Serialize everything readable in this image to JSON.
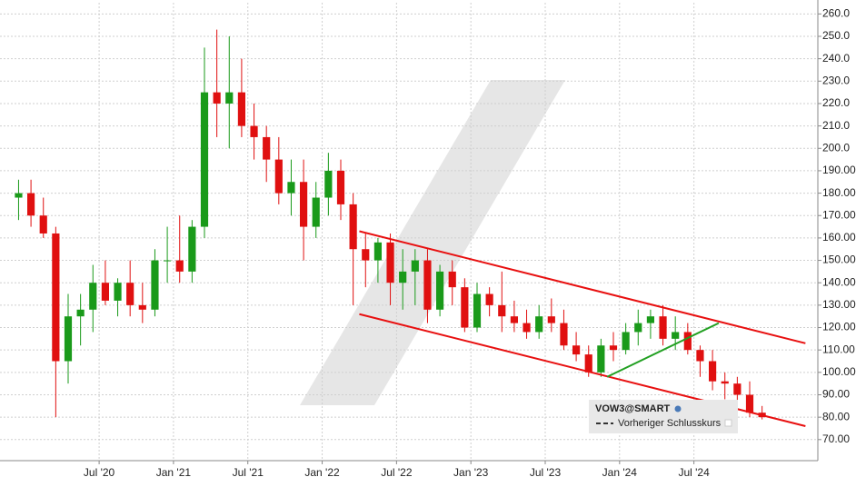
{
  "chart_data": {
    "type": "candlestick",
    "x": [
      "2019-12",
      "2020-01",
      "2020-02",
      "2020-03",
      "2020-04",
      "2020-05",
      "2020-06",
      "2020-07",
      "2020-08",
      "2020-09",
      "2020-10",
      "2020-11",
      "2020-12",
      "2021-01",
      "2021-02",
      "2021-03",
      "2021-04",
      "2021-05",
      "2021-06",
      "2021-07",
      "2021-08",
      "2021-09",
      "2021-10",
      "2021-11",
      "2021-12",
      "2022-01",
      "2022-02",
      "2022-03",
      "2022-04",
      "2022-05",
      "2022-06",
      "2022-07",
      "2022-08",
      "2022-09",
      "2022-10",
      "2022-11",
      "2022-12",
      "2023-01",
      "2023-02",
      "2023-03",
      "2023-04",
      "2023-05",
      "2023-06",
      "2023-07",
      "2023-08",
      "2023-09",
      "2023-10",
      "2023-11",
      "2023-12",
      "2024-01",
      "2024-02",
      "2024-03",
      "2024-04",
      "2024-05",
      "2024-06",
      "2024-07",
      "2024-08",
      "2024-09",
      "2024-10",
      "2024-11",
      "2024-12"
    ],
    "open": [
      178,
      180,
      170,
      162,
      105,
      125,
      128,
      140,
      132,
      140,
      130,
      128,
      150,
      150,
      145,
      165,
      225,
      220,
      225,
      210,
      205,
      195,
      180,
      185,
      165,
      178,
      190,
      175,
      155,
      150,
      158,
      140,
      145,
      150,
      128,
      145,
      138,
      120,
      135,
      130,
      125,
      122,
      118,
      125,
      122,
      112,
      108,
      100,
      112,
      110,
      118,
      122,
      125,
      115,
      118,
      110,
      105,
      96,
      95,
      90,
      82
    ],
    "high": [
      186,
      186,
      178,
      165,
      135,
      135,
      148,
      150,
      142,
      150,
      140,
      155,
      165,
      170,
      168,
      245,
      253,
      250,
      240,
      220,
      210,
      205,
      195,
      195,
      185,
      198,
      195,
      180,
      162,
      160,
      162,
      155,
      155,
      155,
      148,
      150,
      142,
      140,
      138,
      145,
      132,
      128,
      130,
      133,
      128,
      118,
      112,
      115,
      118,
      122,
      128,
      128,
      130,
      125,
      122,
      112,
      110,
      100,
      98,
      96,
      85
    ],
    "low": [
      168,
      165,
      160,
      80,
      95,
      112,
      118,
      130,
      125,
      125,
      122,
      125,
      140,
      140,
      140,
      160,
      205,
      200,
      205,
      195,
      185,
      175,
      170,
      150,
      160,
      170,
      168,
      130,
      138,
      140,
      130,
      128,
      130,
      122,
      125,
      130,
      118,
      118,
      125,
      118,
      118,
      115,
      115,
      118,
      110,
      105,
      98,
      98,
      105,
      108,
      112,
      115,
      112,
      110,
      108,
      98,
      92,
      88,
      87,
      80,
      79
    ],
    "close": [
      180,
      170,
      162,
      105,
      125,
      128,
      140,
      132,
      140,
      130,
      128,
      150,
      150,
      145,
      165,
      225,
      220,
      225,
      210,
      205,
      195,
      180,
      185,
      165,
      178,
      190,
      175,
      155,
      150,
      158,
      140,
      145,
      150,
      128,
      145,
      138,
      120,
      135,
      130,
      125,
      122,
      118,
      125,
      122,
      112,
      108,
      100,
      112,
      110,
      118,
      122,
      125,
      115,
      118,
      110,
      105,
      96,
      95,
      90,
      82,
      80
    ],
    "up_color": "#1a9a1a",
    "down_color": "#e01010",
    "xlim": [
      "2019-11",
      "2025-05"
    ],
    "xticks": [
      {
        "value": "2020-07",
        "label": "Jul '20"
      },
      {
        "value": "2021-01",
        "label": "Jan '21"
      },
      {
        "value": "2021-07",
        "label": "Jul '21"
      },
      {
        "value": "2022-01",
        "label": "Jan '22"
      },
      {
        "value": "2022-07",
        "label": "Jul '22"
      },
      {
        "value": "2023-01",
        "label": "Jan '23"
      },
      {
        "value": "2023-07",
        "label": "Jul '23"
      },
      {
        "value": "2024-01",
        "label": "Jan '24"
      },
      {
        "value": "2024-07",
        "label": "Jul '24"
      }
    ],
    "ylim": [
      61,
      265
    ],
    "yticks": [
      {
        "value": 70,
        "label": "70.00"
      },
      {
        "value": 80,
        "label": "80.00"
      },
      {
        "value": 90,
        "label": "90.00"
      },
      {
        "value": 100,
        "label": "100.00"
      },
      {
        "value": 110,
        "label": "110.00"
      },
      {
        "value": 120,
        "label": "120.00"
      },
      {
        "value": 130,
        "label": "130.00"
      },
      {
        "value": 140,
        "label": "140.00"
      },
      {
        "value": 150,
        "label": "150.00"
      },
      {
        "value": 160,
        "label": "160.00"
      },
      {
        "value": 170,
        "label": "170.00"
      },
      {
        "value": 180,
        "label": "180.00"
      },
      {
        "value": 190,
        "label": "190.00"
      },
      {
        "value": 200,
        "label": "200.0"
      },
      {
        "value": 210,
        "label": "210.0"
      },
      {
        "value": 220,
        "label": "220.0"
      },
      {
        "value": 230,
        "label": "230.0"
      },
      {
        "value": 240,
        "label": "240.0"
      },
      {
        "value": 250,
        "label": "250.0"
      },
      {
        "value": 260,
        "label": "260.0"
      }
    ],
    "grid": true,
    "trend_lines": [
      {
        "color": "#e81010",
        "x": [
          "2022-04",
          "2025-04"
        ],
        "values": [
          163,
          113
        ]
      },
      {
        "color": "#e81010",
        "x": [
          "2022-04",
          "2025-04"
        ],
        "values": [
          126,
          76
        ]
      },
      {
        "color": "#22a022",
        "x": [
          "2023-12",
          "2024-09"
        ],
        "values": [
          98,
          122
        ]
      }
    ],
    "legend": {
      "symbol": "VOW3@SMART",
      "entry": "Vorheriger Schlusskurs"
    }
  }
}
